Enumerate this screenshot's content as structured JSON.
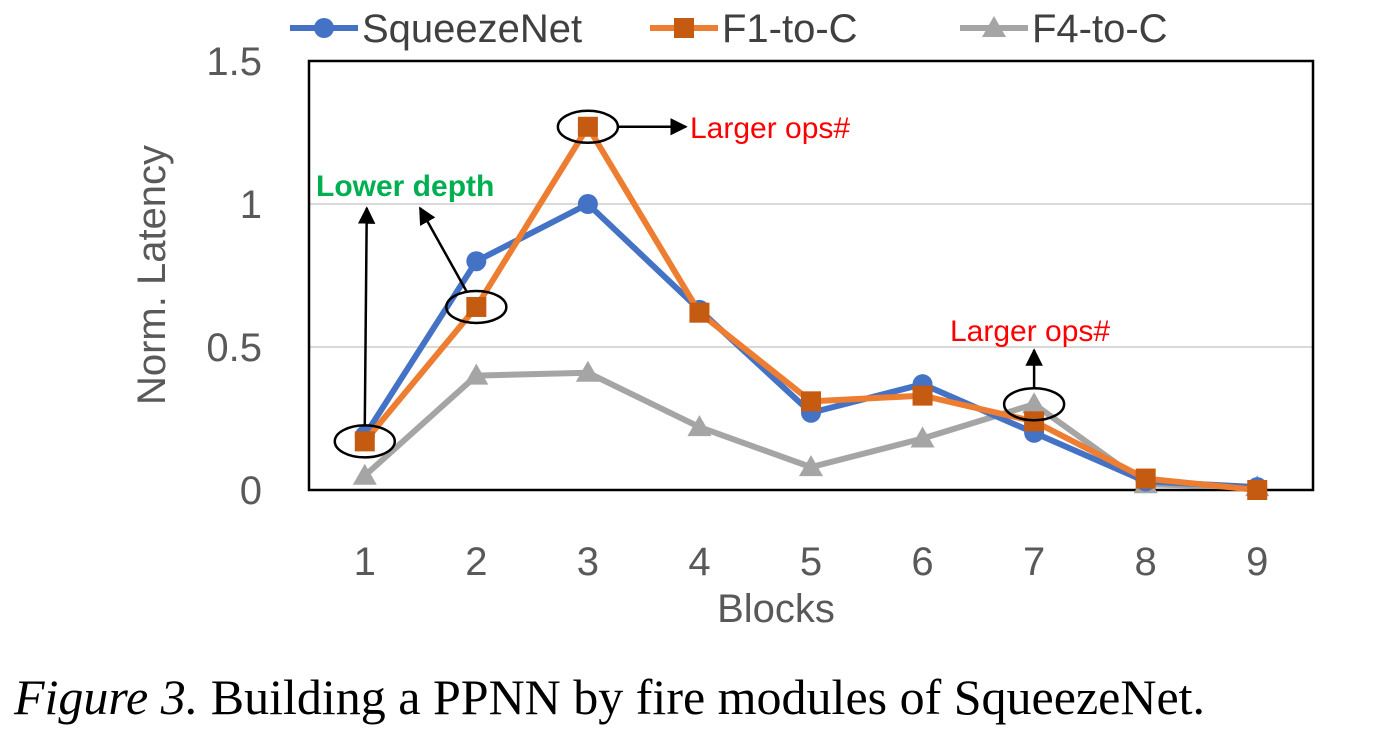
{
  "chart_data": {
    "type": "line",
    "title": "",
    "xlabel": "Blocks",
    "ylabel": "Norm. Latency",
    "ylim": [
      0,
      1.5
    ],
    "yticks": [
      "0",
      "0.5",
      "1",
      "1.5"
    ],
    "grid": "horizontal",
    "legend_position": "top",
    "categories": [
      "1",
      "2",
      "3",
      "4",
      "5",
      "6",
      "7",
      "8",
      "9"
    ],
    "series": [
      {
        "name": "SqueezeNet",
        "color": "#4472c4",
        "marker": "circle",
        "values": [
          0.19,
          0.8,
          1.0,
          0.63,
          0.27,
          0.37,
          0.2,
          0.03,
          0.01
        ]
      },
      {
        "name": "F1-to-C",
        "color": "#ed7d31",
        "marker_color": "#c55a11",
        "marker": "square",
        "values": [
          0.17,
          0.64,
          1.27,
          0.62,
          0.31,
          0.33,
          0.24,
          0.04,
          0.0
        ]
      },
      {
        "name": "F4-to-C",
        "color": "#a5a5a5",
        "marker": "triangle",
        "values": [
          0.05,
          0.4,
          0.41,
          0.22,
          0.08,
          0.18,
          0.3,
          0.02,
          0.01
        ]
      }
    ],
    "annotations": [
      {
        "text": "Lower depth",
        "color": "#00b050",
        "points": [
          {
            "series": 1,
            "index": 0
          },
          {
            "series": 1,
            "index": 1
          }
        ]
      },
      {
        "text": "Larger ops#",
        "color": "#ff0000",
        "points": [
          {
            "series": 1,
            "index": 2
          }
        ]
      },
      {
        "text": "Larger ops#",
        "color": "#ff0000",
        "points": [
          {
            "series": 2,
            "index": 6
          }
        ]
      }
    ]
  },
  "caption": {
    "label": "Figure 3.",
    "text": " Building a PPNN by fire modules of SqueezeNet."
  }
}
